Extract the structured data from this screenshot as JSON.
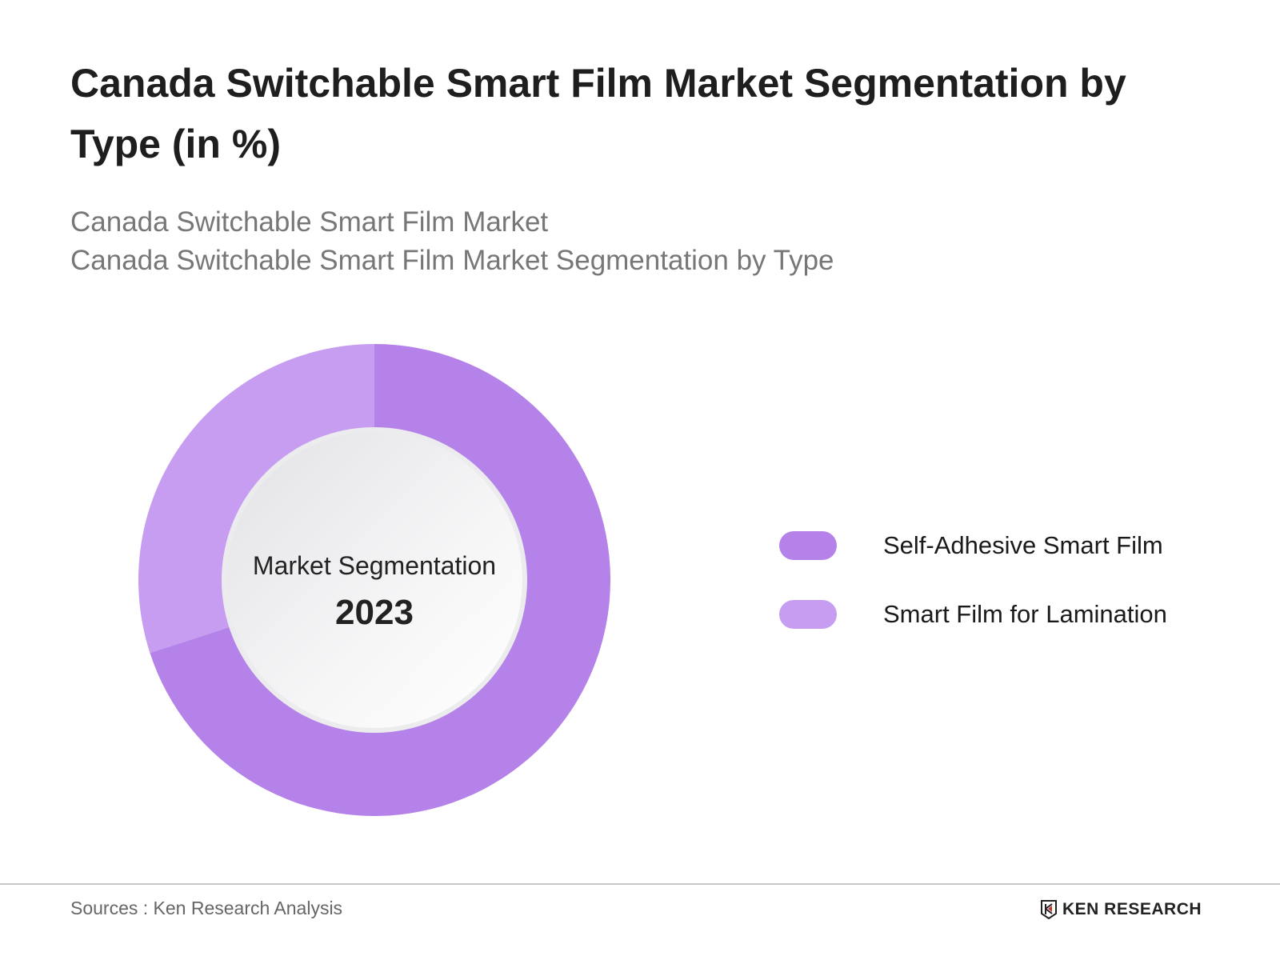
{
  "header": {
    "title": "Canada Switchable Smart Film Market Segmentation by Type (in %)",
    "subtitle_1": "Canada Switchable Smart Film Market",
    "subtitle_2": "Canada Switchable Smart Film Market Segmentation by Type"
  },
  "chart_data": {
    "type": "pie",
    "variant": "donut",
    "center_label": "Market Segmentation",
    "center_year": "2023",
    "categories": [
      "Self-Adhesive Smart Film",
      "Smart Film for Lamination"
    ],
    "values": [
      70,
      30
    ],
    "unit": "%",
    "colors": [
      "#b482e8",
      "#c69df0"
    ],
    "legend_position": "right"
  },
  "footer": {
    "source": "Sources : Ken Research Analysis",
    "logo_text": "KEN RESEARCH"
  }
}
